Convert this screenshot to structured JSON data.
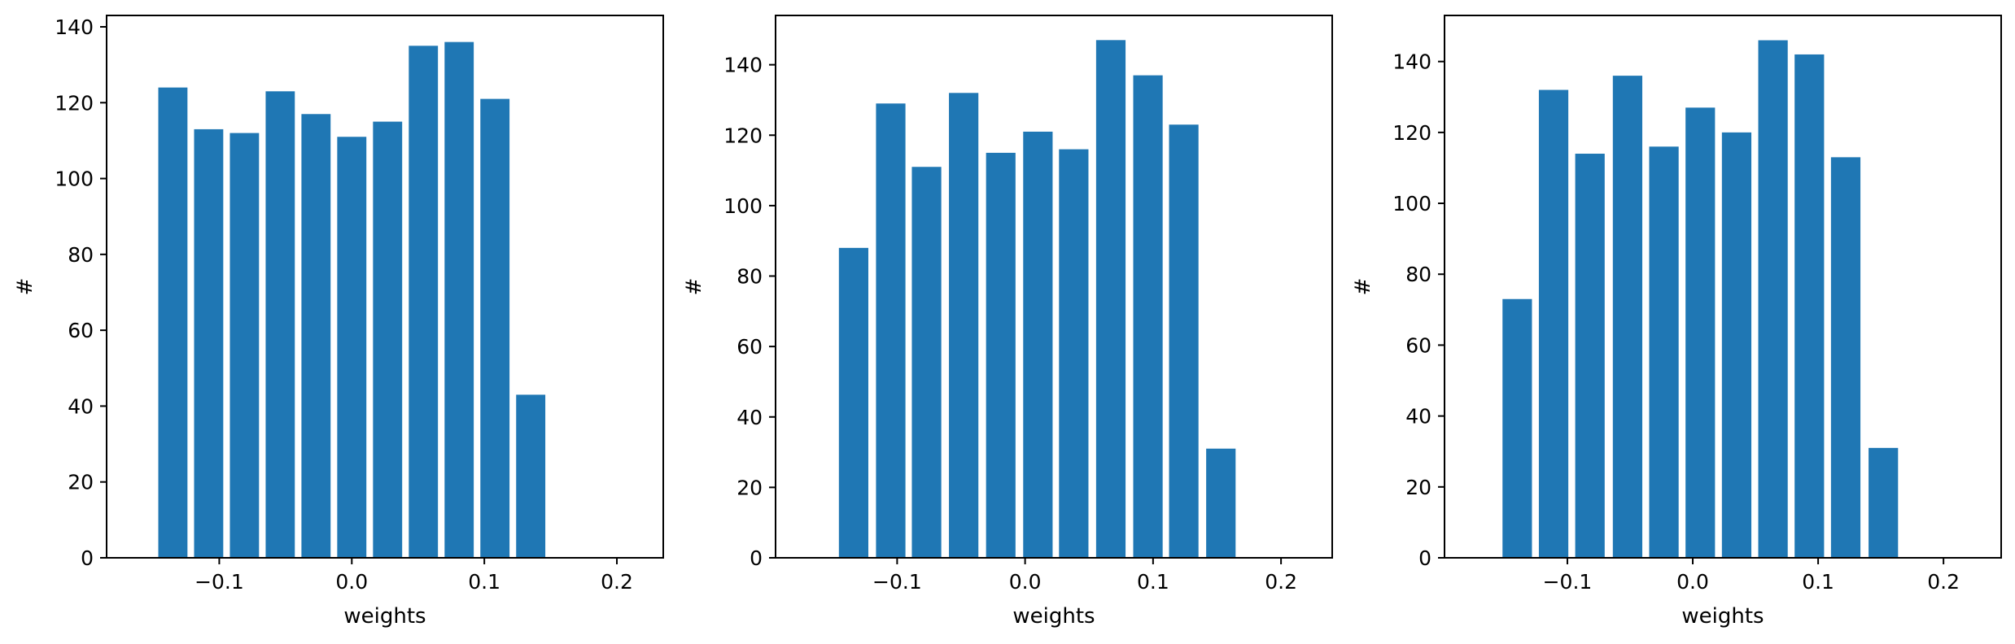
{
  "figure": {
    "bar_color": "#1f77b4"
  },
  "chart_data": [
    {
      "type": "bar",
      "xlabel": "weights",
      "ylabel": "#",
      "x": [
        -0.135,
        -0.108,
        -0.081,
        -0.054,
        -0.027,
        0.0,
        0.027,
        0.054,
        0.081,
        0.108,
        0.135
      ],
      "values": [
        124,
        113,
        112,
        123,
        117,
        111,
        115,
        135,
        136,
        121,
        43
      ],
      "bar_width": 0.022,
      "xlim": [
        -0.185,
        0.235
      ],
      "ylim": [
        0,
        143
      ],
      "xticks": [
        -0.1,
        0.0,
        0.1,
        0.2
      ],
      "xtick_labels": [
        "−0.1",
        "0.0",
        "0.1",
        "0.2"
      ],
      "yticks": [
        0,
        20,
        40,
        60,
        80,
        100,
        120,
        140
      ],
      "ytick_labels": [
        "0",
        "20",
        "40",
        "60",
        "80",
        "100",
        "120",
        "140"
      ],
      "grid": false
    },
    {
      "type": "bar",
      "xlabel": "weights",
      "ylabel": "#",
      "x": [
        -0.134,
        -0.105,
        -0.077,
        -0.048,
        -0.019,
        0.01,
        0.038,
        0.067,
        0.096,
        0.124,
        0.153
      ],
      "values": [
        88,
        129,
        111,
        132,
        115,
        121,
        116,
        147,
        137,
        123,
        31
      ],
      "bar_width": 0.023,
      "xlim": [
        -0.195,
        0.24
      ],
      "ylim": [
        0,
        154
      ],
      "xticks": [
        -0.1,
        0.0,
        0.1,
        0.2
      ],
      "xtick_labels": [
        "−0.1",
        "0.0",
        "0.1",
        "0.2"
      ],
      "yticks": [
        0,
        20,
        40,
        60,
        80,
        100,
        120,
        140
      ],
      "ytick_labels": [
        "0",
        "20",
        "40",
        "60",
        "80",
        "100",
        "120",
        "140"
      ],
      "grid": false
    },
    {
      "type": "bar",
      "xlabel": "weights",
      "ylabel": "#",
      "x": [
        -0.14,
        -0.111,
        -0.082,
        -0.052,
        -0.023,
        0.006,
        0.035,
        0.064,
        0.093,
        0.122,
        0.152
      ],
      "values": [
        73,
        132,
        114,
        136,
        116,
        127,
        120,
        146,
        142,
        113,
        31
      ],
      "bar_width": 0.0235,
      "xlim": [
        -0.198,
        0.246
      ],
      "ylim": [
        0,
        153
      ],
      "xticks": [
        -0.1,
        0.0,
        0.1,
        0.2
      ],
      "xtick_labels": [
        "−0.1",
        "0.0",
        "0.1",
        "0.2"
      ],
      "yticks": [
        0,
        20,
        40,
        60,
        80,
        100,
        120,
        140
      ],
      "ytick_labels": [
        "0",
        "20",
        "40",
        "60",
        "80",
        "100",
        "120",
        "140"
      ],
      "grid": false
    }
  ]
}
